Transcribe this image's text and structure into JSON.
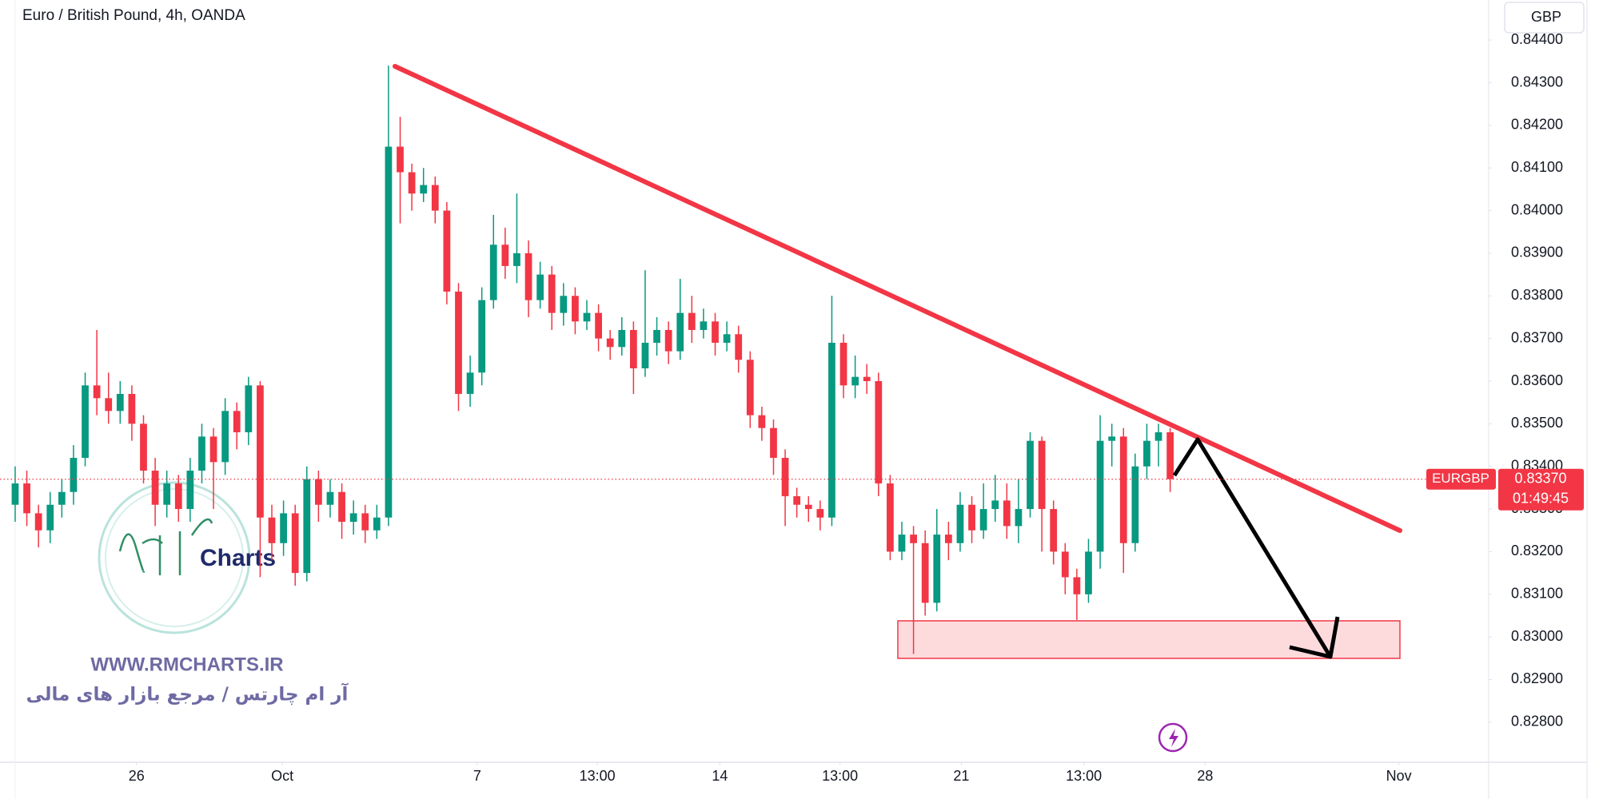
{
  "chart_data": {
    "type": "candlestick",
    "title": "Euro / British Pound, 4h, OANDA",
    "currency": "GBP",
    "symbol_tag": "EURGBP",
    "last_price": {
      "value": 0.8337,
      "label": "0.83370"
    },
    "countdown": "01:49:45",
    "colors": {
      "up": "#089981",
      "down": "#f23645"
    },
    "grid": false,
    "open": [
      0.8331,
      0.8336,
      0.8329,
      0.8325,
      0.8331,
      0.8334,
      0.8342,
      0.8359,
      0.8356,
      0.8353,
      0.8357,
      0.835,
      0.8339,
      0.8331,
      0.8336,
      0.833,
      0.8339,
      0.8347,
      0.8341,
      0.8353,
      0.8348,
      0.8359,
      0.8328,
      0.8322,
      0.8329,
      0.8315,
      0.8337,
      0.8331,
      0.8334,
      0.8327,
      0.8329,
      0.8325,
      0.8328,
      0.8415,
      0.8409,
      0.8404,
      0.8406,
      0.84,
      0.8381,
      0.8357,
      0.8362,
      0.8379,
      0.8392,
      0.8387,
      0.839,
      0.8379,
      0.8385,
      0.8376,
      0.838,
      0.8374,
      0.8376,
      0.837,
      0.8368,
      0.8372,
      0.8363,
      0.8369,
      0.8372,
      0.8367,
      0.8376,
      0.8372,
      0.8374,
      0.8369,
      0.8371,
      0.8365,
      0.8352,
      0.8349,
      0.8342,
      0.8333,
      0.8331,
      0.833,
      0.8328,
      0.8369,
      0.8359,
      0.8361,
      0.836,
      0.8336,
      0.832,
      0.8324,
      0.8322,
      0.8308,
      0.8324,
      0.8322,
      0.8331,
      0.8325,
      0.833,
      0.8332,
      0.8326,
      0.833,
      0.8346,
      0.833,
      0.832,
      0.8314,
      0.831,
      0.832,
      0.8346,
      0.8347,
      0.8322,
      0.834,
      0.8346,
      0.8348
    ],
    "high": [
      0.834,
      0.8339,
      0.8331,
      0.8334,
      0.8337,
      0.8345,
      0.8362,
      0.8372,
      0.8362,
      0.836,
      0.8359,
      0.8352,
      0.8342,
      0.8339,
      0.8338,
      0.8342,
      0.835,
      0.8349,
      0.8356,
      0.8355,
      0.8361,
      0.836,
      0.8331,
      0.8332,
      0.8331,
      0.834,
      0.8339,
      0.8337,
      0.8336,
      0.8332,
      0.8331,
      0.8331,
      0.8434,
      0.8422,
      0.8411,
      0.841,
      0.8408,
      0.8402,
      0.8383,
      0.8366,
      0.8382,
      0.8399,
      0.8396,
      0.8404,
      0.8393,
      0.8388,
      0.8387,
      0.8383,
      0.8382,
      0.8379,
      0.8378,
      0.8372,
      0.8375,
      0.8374,
      0.8386,
      0.8375,
      0.8374,
      0.8384,
      0.838,
      0.8377,
      0.8376,
      0.8374,
      0.8373,
      0.8367,
      0.8354,
      0.8351,
      0.8344,
      0.8335,
      0.8333,
      0.8332,
      0.838,
      0.8371,
      0.8366,
      0.8364,
      0.8362,
      0.8338,
      0.8327,
      0.8326,
      0.8325,
      0.833,
      0.8327,
      0.8334,
      0.8333,
      0.8336,
      0.8338,
      0.8336,
      0.8337,
      0.8348,
      0.8347,
      0.8332,
      0.8322,
      0.8316,
      0.8323,
      0.8352,
      0.835,
      0.8349,
      0.8343,
      0.835,
      0.835,
      0.8349
    ],
    "low": [
      0.8327,
      0.8326,
      0.8321,
      0.8322,
      0.8328,
      0.8331,
      0.834,
      0.8352,
      0.835,
      0.835,
      0.8346,
      0.8336,
      0.8326,
      0.8328,
      0.8327,
      0.8327,
      0.8336,
      0.833,
      0.8338,
      0.8344,
      0.8345,
      0.8314,
      0.8318,
      0.8319,
      0.8312,
      0.8313,
      0.8327,
      0.8328,
      0.8323,
      0.8324,
      0.8322,
      0.8323,
      0.8326,
      0.8397,
      0.84,
      0.8402,
      0.8397,
      0.8378,
      0.8353,
      0.8354,
      0.8359,
      0.8377,
      0.8384,
      0.8383,
      0.8375,
      0.8377,
      0.8372,
      0.8373,
      0.8371,
      0.8372,
      0.8367,
      0.8365,
      0.8366,
      0.8357,
      0.8361,
      0.8366,
      0.8364,
      0.8365,
      0.8369,
      0.837,
      0.8366,
      0.8367,
      0.8362,
      0.8349,
      0.8346,
      0.8338,
      0.8326,
      0.8328,
      0.8327,
      0.8325,
      0.8326,
      0.8356,
      0.8356,
      0.8357,
      0.8333,
      0.8318,
      0.8318,
      0.8296,
      0.8305,
      0.8306,
      0.8318,
      0.832,
      0.8322,
      0.8323,
      0.8327,
      0.8323,
      0.8322,
      0.8328,
      0.832,
      0.8317,
      0.831,
      0.8304,
      0.8308,
      0.8316,
      0.834,
      0.8315,
      0.832,
      0.8337,
      0.834,
      0.8334
    ],
    "close": [
      0.8336,
      0.8329,
      0.8325,
      0.8331,
      0.8334,
      0.8342,
      0.8359,
      0.8356,
      0.8353,
      0.8357,
      0.835,
      0.8339,
      0.8331,
      0.8336,
      0.833,
      0.8339,
      0.8347,
      0.8341,
      0.8353,
      0.8348,
      0.8359,
      0.8328,
      0.8322,
      0.8329,
      0.8315,
      0.8337,
      0.8331,
      0.8334,
      0.8327,
      0.8329,
      0.8325,
      0.8328,
      0.8415,
      0.8409,
      0.8404,
      0.8406,
      0.84,
      0.8381,
      0.8357,
      0.8362,
      0.8379,
      0.8392,
      0.8387,
      0.839,
      0.8379,
      0.8385,
      0.8376,
      0.838,
      0.8374,
      0.8376,
      0.837,
      0.8368,
      0.8372,
      0.8363,
      0.8369,
      0.8372,
      0.8367,
      0.8376,
      0.8372,
      0.8374,
      0.8369,
      0.8371,
      0.8365,
      0.8352,
      0.8349,
      0.8342,
      0.8333,
      0.8331,
      0.833,
      0.8328,
      0.8369,
      0.8359,
      0.8361,
      0.836,
      0.8336,
      0.832,
      0.8324,
      0.8322,
      0.8308,
      0.8324,
      0.8322,
      0.8331,
      0.8325,
      0.833,
      0.8332,
      0.8326,
      0.833,
      0.8346,
      0.833,
      0.832,
      0.8314,
      0.831,
      0.832,
      0.8346,
      0.8347,
      0.8322,
      0.834,
      0.8346,
      0.8348,
      0.8337
    ],
    "xlim": [
      -1.3,
      126.3
    ],
    "xticks": [
      {
        "value": 10.4,
        "label": "26"
      },
      {
        "value": 22.9,
        "label": "Oct"
      },
      {
        "value": 39.6,
        "label": "7"
      },
      {
        "value": 49.9,
        "label": "13:00"
      },
      {
        "value": 60.4,
        "label": "14"
      },
      {
        "value": 70.7,
        "label": "13:00"
      },
      {
        "value": 81.1,
        "label": "21"
      },
      {
        "value": 91.6,
        "label": "13:00"
      },
      {
        "value": 102,
        "label": "28"
      },
      {
        "value": 118.6,
        "label": "Nov"
      }
    ],
    "ylim": [
      0.82706,
      0.84494
    ],
    "yticks": [
      {
        "value": 0.828,
        "label": "0.82800"
      },
      {
        "value": 0.829,
        "label": "0.82900"
      },
      {
        "value": 0.83,
        "label": "0.83000"
      },
      {
        "value": 0.831,
        "label": "0.83100"
      },
      {
        "value": 0.832,
        "label": "0.83200"
      },
      {
        "value": 0.833,
        "label": "0.83300"
      },
      {
        "value": 0.834,
        "label": "0.83400"
      },
      {
        "value": 0.835,
        "label": "0.83500"
      },
      {
        "value": 0.836,
        "label": "0.83600"
      },
      {
        "value": 0.837,
        "label": "0.83700"
      },
      {
        "value": 0.838,
        "label": "0.83800"
      },
      {
        "value": 0.839,
        "label": "0.83900"
      },
      {
        "value": 0.84,
        "label": "0.84000"
      },
      {
        "value": 0.841,
        "label": "0.84100"
      },
      {
        "value": 0.842,
        "label": "0.84200"
      },
      {
        "value": 0.843,
        "label": "0.84300"
      },
      {
        "value": 0.844,
        "label": "0.84400"
      }
    ]
  },
  "watermark": {
    "logo": "Charts",
    "url": "WWW.RMCHARTS.IR",
    "tagline": "آر ام چارتس / مرجع بازار های مالی"
  }
}
